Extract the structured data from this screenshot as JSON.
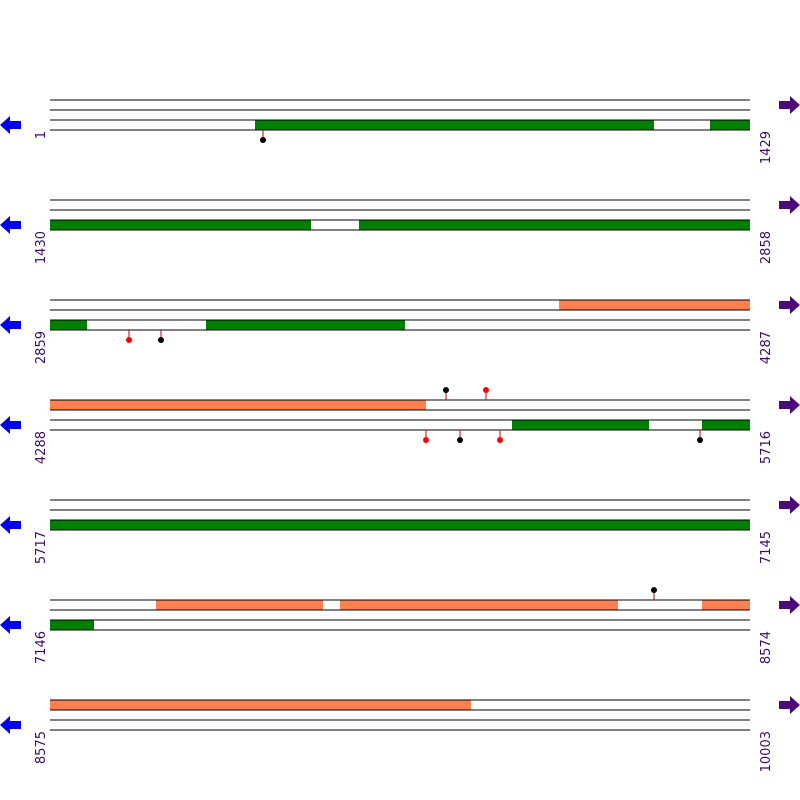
{
  "rows": [
    {
      "start": "1",
      "end": "1429"
    },
    {
      "start": "1430",
      "end": "2858"
    },
    {
      "start": "2859",
      "end": "4287"
    },
    {
      "start": "4288",
      "end": "5716"
    },
    {
      "start": "5717",
      "end": "7145"
    },
    {
      "start": "7146",
      "end": "8574"
    },
    {
      "start": "8575",
      "end": "10003"
    }
  ]
}
